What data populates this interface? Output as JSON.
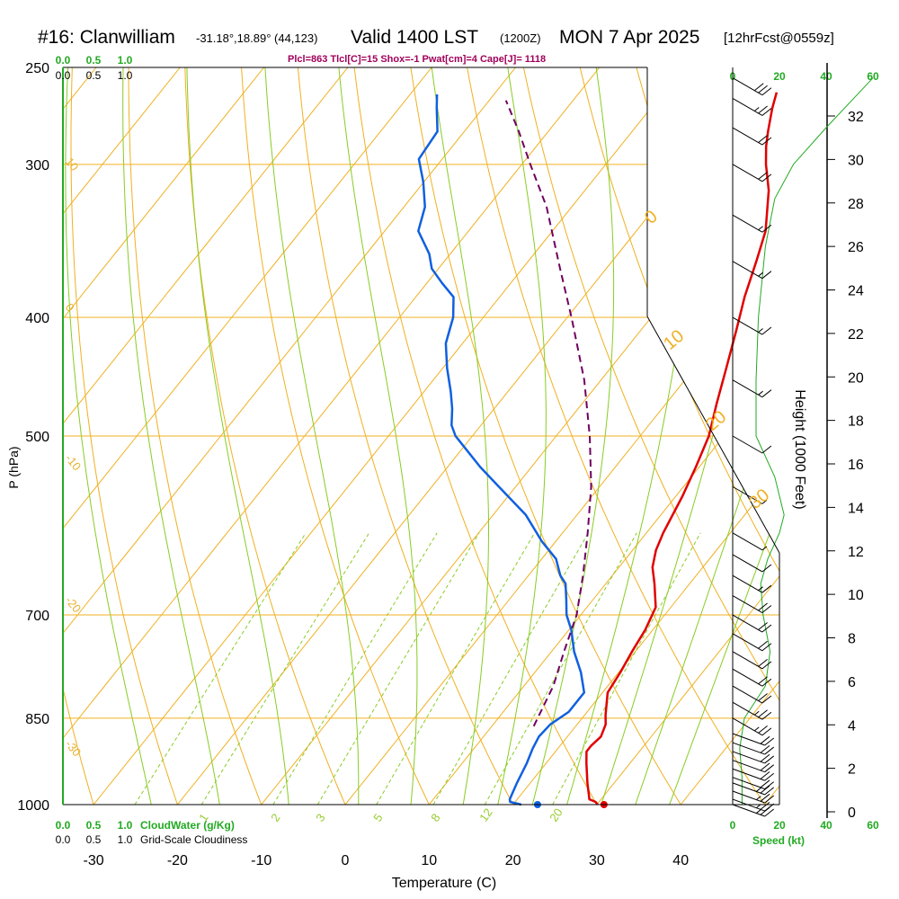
{
  "title": {
    "main": "#16: Clanwilliam",
    "coords": "-31.18°,18.89° (44,123)",
    "valid": "Valid 1400 LST",
    "zulu": "(1200Z)",
    "date": "MON 7 Apr 2025",
    "forecast": "[12hrFcst@0559z]",
    "params": "Plcl=863 Tlcl[C]=15 Shox=-1 Pwat[cm]=4 Cape[J]= 1118"
  },
  "chart_data": {
    "type": "line",
    "xlabel": "Temperature (C)",
    "ylabel": "P (hPa)",
    "xlim": [
      -34,
      36
    ],
    "ylim": [
      1000,
      250
    ],
    "x_ticks": [
      "-30",
      "-20",
      "-10",
      "0",
      "10",
      "20",
      "30",
      "40"
    ],
    "x_tick_values": [
      -30,
      -20,
      -10,
      0,
      10,
      20,
      30,
      40
    ],
    "y_ticks": [
      "250",
      "300",
      "400",
      "500",
      "700",
      "850",
      "1000"
    ],
    "y_tick_values": [
      250,
      300,
      400,
      500,
      700,
      850,
      1000
    ],
    "height_axis": {
      "label": "Height (1000 Feet)",
      "ticks": [
        "0",
        "2",
        "4",
        "6",
        "8",
        "10",
        "12",
        "14",
        "16",
        "18",
        "20",
        "22",
        "24",
        "26",
        "28",
        "30",
        "32"
      ],
      "tick_values": [
        0,
        2,
        4,
        6,
        8,
        10,
        12,
        14,
        16,
        18,
        20,
        22,
        24,
        26,
        28,
        30,
        32
      ]
    },
    "speed_axis": {
      "label": "Speed (kt)",
      "ticks": [
        "0",
        "20",
        "40",
        "60"
      ],
      "tick_values": [
        0,
        20,
        40,
        60
      ]
    },
    "top_scale": {
      "row1": [
        "0.0",
        "0.5",
        "1.0"
      ],
      "row2": [
        "0.0",
        "0.5",
        "1.0"
      ]
    },
    "bottom_scale": {
      "row1": [
        "0.0",
        "0.5",
        "1.0"
      ],
      "row1_label": "CloudWater (g/Kg)",
      "row2": [
        "0.0",
        "0.5",
        "1.0"
      ],
      "row2_label": "Grid-Scale Cloudiness"
    },
    "isotherm_labels": [
      "10",
      "0",
      "-10",
      "-20",
      "-30"
    ],
    "isotherm_label_values": [
      10,
      0,
      -10,
      -20,
      -30
    ],
    "dry_adiabat_labels": [
      "0",
      "10",
      "20",
      "30"
    ],
    "dry_adiabat_label_values": [
      0,
      10,
      20,
      30
    ],
    "mixing_ratio_labels": [
      "1",
      "2",
      "3",
      "5",
      "8",
      "12",
      "20"
    ],
    "mixing_ratio_values": [
      1,
      2,
      3,
      5,
      8,
      12,
      20
    ],
    "series": [
      {
        "name": "Temperature",
        "color": "#e00000",
        "points": [
          [
            30.1,
            1000
          ],
          [
            29.6,
            995
          ],
          [
            28.6,
            990
          ],
          [
            26.8,
            960
          ],
          [
            24.8,
            925
          ],
          [
            23.7,
            905
          ],
          [
            23.7,
            895
          ],
          [
            24.0,
            880
          ],
          [
            23.4,
            860
          ],
          [
            22.5,
            845
          ],
          [
            20.6,
            810
          ],
          [
            20.2,
            780
          ],
          [
            19.6,
            750
          ],
          [
            19.1,
            720
          ],
          [
            18.2,
            690
          ],
          [
            15.8,
            660
          ],
          [
            14.0,
            640
          ],
          [
            12.8,
            620
          ],
          [
            12.0,
            600
          ],
          [
            10.8,
            560
          ],
          [
            9.6,
            530
          ],
          [
            8.2,
            500
          ],
          [
            6.0,
            470
          ],
          [
            3.8,
            440
          ],
          [
            1.4,
            410
          ],
          [
            -0.8,
            385
          ],
          [
            -2.8,
            360
          ],
          [
            -4.6,
            340
          ],
          [
            -8.1,
            315
          ],
          [
            -10.9,
            300
          ],
          [
            -12.6,
            290
          ],
          [
            -13.8,
            282
          ],
          [
            -15.5,
            270
          ],
          [
            -16.5,
            262
          ]
        ]
      },
      {
        "name": "Dewpoint",
        "color": "#1060e0",
        "points": [
          [
            21.0,
            1000
          ],
          [
            19.4,
            995
          ],
          [
            19.1,
            990
          ],
          [
            18.4,
            960
          ],
          [
            17.7,
            925
          ],
          [
            17.0,
            900
          ],
          [
            16.6,
            880
          ],
          [
            16.8,
            860
          ],
          [
            17.8,
            840
          ],
          [
            17.8,
            810
          ],
          [
            15.5,
            780
          ],
          [
            12.7,
            750
          ],
          [
            10.3,
            720
          ],
          [
            8.3,
            700
          ],
          [
            6.8,
            680
          ],
          [
            5.2,
            660
          ],
          [
            3.8,
            650
          ],
          [
            1.7,
            630
          ],
          [
            -1.6,
            610
          ],
          [
            -6.1,
            580
          ],
          [
            -12.0,
            550
          ],
          [
            -16.1,
            530
          ],
          [
            -20.0,
            510
          ],
          [
            -22.0,
            500
          ],
          [
            -23.5,
            490
          ],
          [
            -25.0,
            475
          ],
          [
            -26.8,
            460
          ],
          [
            -29.5,
            440
          ],
          [
            -32.0,
            420
          ],
          [
            -33.6,
            400
          ],
          [
            -35.5,
            385
          ],
          [
            -38.2,
            375
          ],
          [
            -40.8,
            365
          ],
          [
            -42.5,
            355
          ],
          [
            -46.0,
            340
          ],
          [
            -47.5,
            325
          ],
          [
            -50.1,
            310
          ],
          [
            -52.8,
            297
          ],
          [
            -53.2,
            282
          ],
          [
            -55.5,
            270
          ],
          [
            -56.8,
            263
          ]
        ]
      },
      {
        "name": "Parcel",
        "color": "#700060",
        "dashed": true,
        "points": [
          [
            15,
            863
          ],
          [
            13.5,
            800
          ],
          [
            11.5,
            750
          ],
          [
            9.5,
            700
          ],
          [
            6.5,
            650
          ],
          [
            3.0,
            600
          ],
          [
            -1.0,
            550
          ],
          [
            -6.0,
            500
          ],
          [
            -12.0,
            450
          ],
          [
            -19.5,
            400
          ],
          [
            -25.5,
            365
          ],
          [
            -33.0,
            325
          ],
          [
            -39.0,
            300
          ],
          [
            -43.5,
            282
          ],
          [
            -48.0,
            266
          ]
        ]
      }
    ],
    "wind_barbs_kt": [
      {
        "p": 1000,
        "spd": 25,
        "dir": 290
      },
      {
        "p": 990,
        "spd": 25,
        "dir": 290
      },
      {
        "p": 975,
        "spd": 25,
        "dir": 290
      },
      {
        "p": 960,
        "spd": 25,
        "dir": 290
      },
      {
        "p": 950,
        "spd": 20,
        "dir": 290
      },
      {
        "p": 935,
        "spd": 20,
        "dir": 290
      },
      {
        "p": 920,
        "spd": 20,
        "dir": 290
      },
      {
        "p": 905,
        "spd": 20,
        "dir": 290
      },
      {
        "p": 890,
        "spd": 20,
        "dir": 290
      },
      {
        "p": 875,
        "spd": 20,
        "dir": 290
      },
      {
        "p": 850,
        "spd": 25,
        "dir": 300
      },
      {
        "p": 825,
        "spd": 25,
        "dir": 300
      },
      {
        "p": 800,
        "spd": 20,
        "dir": 300
      },
      {
        "p": 775,
        "spd": 20,
        "dir": 300
      },
      {
        "p": 750,
        "spd": 20,
        "dir": 300
      },
      {
        "p": 725,
        "spd": 20,
        "dir": 300
      },
      {
        "p": 700,
        "spd": 20,
        "dir": 300
      },
      {
        "p": 675,
        "spd": 20,
        "dir": 300
      },
      {
        "p": 650,
        "spd": 15,
        "dir": 300
      },
      {
        "p": 625,
        "spd": 10,
        "dir": 300
      },
      {
        "p": 600,
        "spd": 5,
        "dir": 300
      },
      {
        "p": 550,
        "spd": 5,
        "dir": 300
      },
      {
        "p": 500,
        "spd": 10,
        "dir": 300
      },
      {
        "p": 450,
        "spd": 15,
        "dir": 300
      },
      {
        "p": 400,
        "spd": 15,
        "dir": 300
      },
      {
        "p": 360,
        "spd": 15,
        "dir": 300
      },
      {
        "p": 330,
        "spd": 15,
        "dir": 300
      },
      {
        "p": 300,
        "spd": 20,
        "dir": 300
      },
      {
        "p": 280,
        "spd": 20,
        "dir": 300
      },
      {
        "p": 265,
        "spd": 25,
        "dir": 300
      },
      {
        "p": 255,
        "spd": 30,
        "dir": 300
      }
    ],
    "wind_speed_profile_kt": [
      [
        1000,
        4
      ],
      [
        950,
        4
      ],
      [
        900,
        3
      ],
      [
        850,
        5
      ],
      [
        800,
        14
      ],
      [
        750,
        16
      ],
      [
        700,
        13
      ],
      [
        660,
        12
      ],
      [
        630,
        15
      ],
      [
        600,
        20
      ],
      [
        580,
        22
      ],
      [
        540,
        18
      ],
      [
        500,
        10
      ],
      [
        450,
        10
      ],
      [
        400,
        11
      ],
      [
        350,
        14
      ],
      [
        320,
        18
      ],
      [
        300,
        26
      ],
      [
        280,
        40
      ],
      [
        255,
        60
      ]
    ],
    "grid": true
  }
}
